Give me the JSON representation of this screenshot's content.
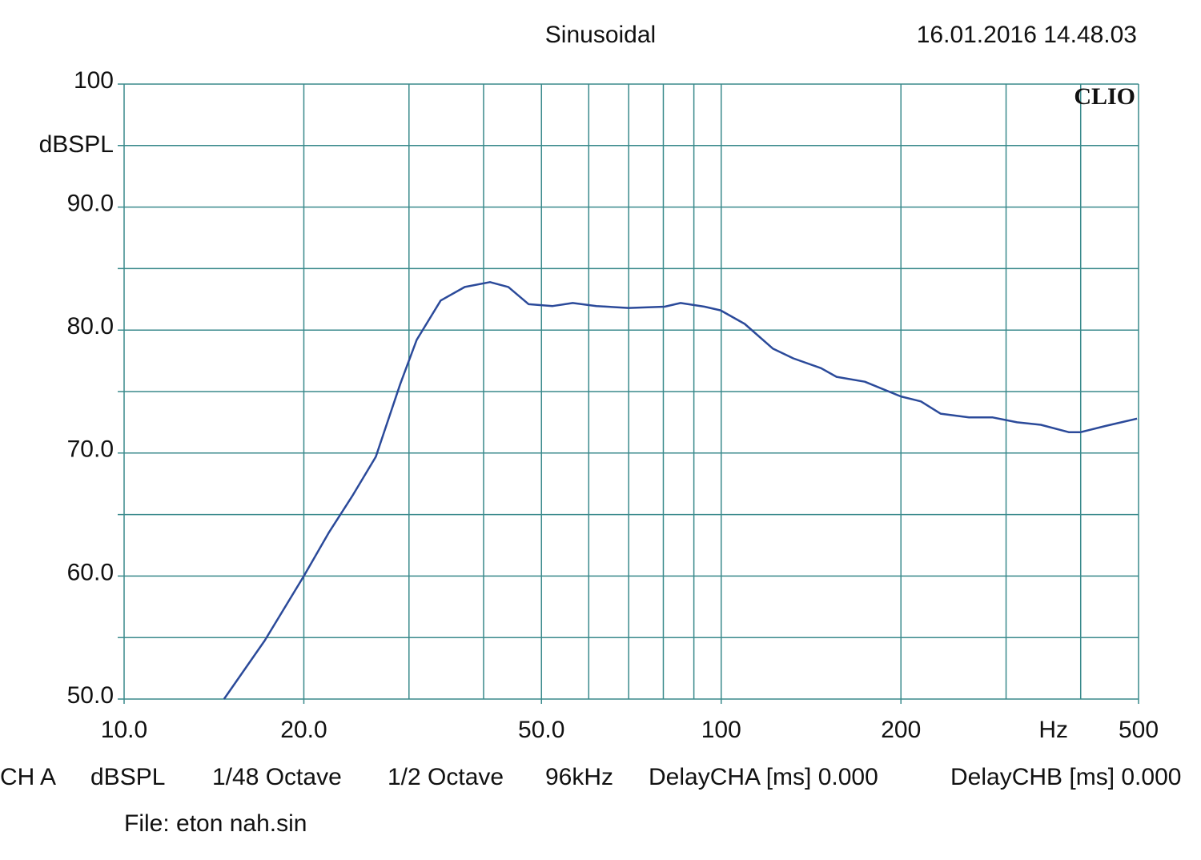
{
  "chart_data": {
    "type": "line",
    "title": "Sinusoidal",
    "timestamp": "16.01.2016 14.48.03",
    "brand": "CLIO",
    "xlabel": "Hz",
    "ylabel": "dBSPL",
    "xscale": "log",
    "xlim": [
      10,
      500
    ],
    "ylim": [
      50,
      100
    ],
    "xticks": [
      {
        "value": 10,
        "label": "10.0"
      },
      {
        "value": 20,
        "label": "20.0"
      },
      {
        "value": 50,
        "label": "50.0"
      },
      100,
      200,
      500
    ],
    "xminor": [
      30,
      40,
      60,
      70,
      80,
      90,
      300,
      400
    ],
    "yticks": [
      {
        "value": 50,
        "label": "50.0"
      },
      {
        "value": 60,
        "label": "60.0"
      },
      {
        "value": 70,
        "label": "70.0"
      },
      {
        "value": 80,
        "label": "80.0"
      },
      {
        "value": 90,
        "label": "90.0"
      },
      100
    ],
    "yminor": [
      55,
      65,
      75,
      85,
      95
    ],
    "grid": true,
    "grid_color": "#3a8a8c",
    "x": [
      14.7,
      17.2,
      20.0,
      22.0,
      24.1,
      26.4,
      29.0,
      30.9,
      33.9,
      37.2,
      41.0,
      44.0,
      47.6,
      52.2,
      56.4,
      61.8,
      70.0,
      80.4,
      85.5,
      93.8,
      99.8,
      109.5,
      122,
      132,
      147,
      156,
      174,
      200,
      216,
      233,
      260,
      285,
      313,
      343,
      382,
      400,
      440,
      497
    ],
    "series": [
      {
        "color": "#2b4a9a",
        "values": [
          50.0,
          54.75,
          60.0,
          63.5,
          66.5,
          69.7,
          75.6,
          79.2,
          82.4,
          83.5,
          83.9,
          83.5,
          82.1,
          81.95,
          82.2,
          81.95,
          81.8,
          81.9,
          82.2,
          81.9,
          81.6,
          80.5,
          78.5,
          77.7,
          76.9,
          76.2,
          75.8,
          74.6,
          74.2,
          73.2,
          72.9,
          72.9,
          72.5,
          72.3,
          71.7,
          71.7,
          72.2,
          72.8
        ]
      }
    ],
    "footer": [
      "CH A",
      "dBSPL",
      "1/48 Octave",
      "1/2 Octave",
      "96kHz",
      "DelayCHA [ms] 0.000",
      "DelayCHB [ms] 0.000"
    ],
    "file": "File: eton nah.sin"
  }
}
